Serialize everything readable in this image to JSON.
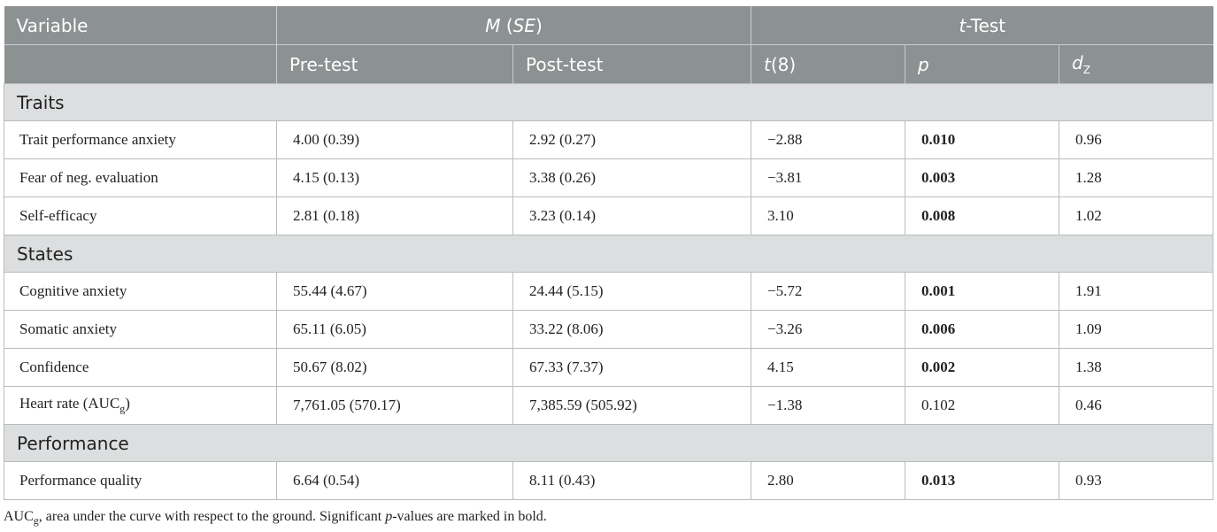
{
  "header": {
    "variable": "Variable",
    "m_se_m": "M",
    "m_se_se": "SE",
    "ttest_t": "t",
    "ttest_rest": "-Test",
    "pre": "Pre-test",
    "post": "Post-test",
    "t8_t": "t",
    "t8_rest": "(8)",
    "p": "p",
    "dz_d": "d",
    "dz_sub": "Z"
  },
  "sections": [
    {
      "label": "Traits",
      "rows": [
        {
          "variable": "Trait performance anxiety",
          "pre": "4.00 (0.39)",
          "post": "2.92 (0.27)",
          "t": "−2.88",
          "p": "0.010",
          "p_bold": true,
          "dz": "0.96"
        },
        {
          "variable": "Fear of neg. evaluation",
          "pre": "4.15 (0.13)",
          "post": "3.38 (0.26)",
          "t": "−3.81",
          "p": "0.003",
          "p_bold": true,
          "dz": "1.28"
        },
        {
          "variable": "Self-efficacy",
          "pre": "2.81 (0.18)",
          "post": "3.23 (0.14)",
          "t": "3.10",
          "p": "0.008",
          "p_bold": true,
          "dz": "1.02"
        }
      ]
    },
    {
      "label": "States",
      "rows": [
        {
          "variable": "Cognitive anxiety",
          "pre": "55.44 (4.67)",
          "post": "24.44 (5.15)",
          "t": "−5.72",
          "p": "0.001",
          "p_bold": true,
          "dz": "1.91"
        },
        {
          "variable": "Somatic anxiety",
          "pre": "65.11 (6.05)",
          "post": "33.22 (8.06)",
          "t": "−3.26",
          "p": "0.006",
          "p_bold": true,
          "dz": "1.09"
        },
        {
          "variable": "Confidence",
          "pre": "50.67 (8.02)",
          "post": "67.33 (7.37)",
          "t": "4.15",
          "p": "0.002",
          "p_bold": true,
          "dz": "1.38"
        },
        {
          "variable": "Heart rate (AUC",
          "variable_sub": "g",
          "variable_tail": ")",
          "pre": "7,761.05 (570.17)",
          "post": "7,385.59 (505.92)",
          "t": "−1.38",
          "p": "0.102",
          "p_bold": false,
          "dz": "0.46"
        }
      ]
    },
    {
      "label": "Performance",
      "rows": [
        {
          "variable": "Performance quality",
          "pre": "6.64 (0.54)",
          "post": "8.11 (0.43)",
          "t": "2.80",
          "p": "0.013",
          "p_bold": true,
          "dz": "0.93"
        }
      ]
    }
  ],
  "footnote": {
    "auc": "AUC",
    "auc_sub": "g",
    "part1": ", area under the curve with respect to the ground. Significant ",
    "p": "p",
    "part2": "-values are marked in bold."
  }
}
